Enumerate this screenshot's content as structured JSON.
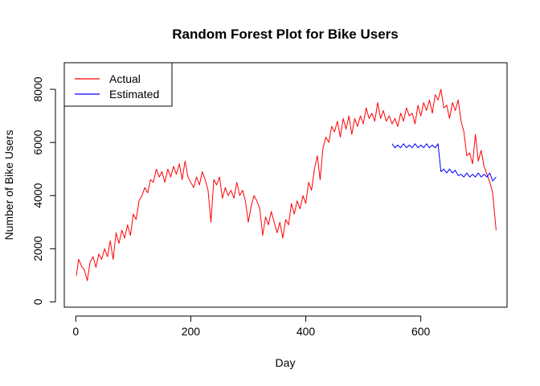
{
  "chart_data": {
    "type": "line",
    "title": "Random Forest Plot for Bike Users",
    "xlabel": "Day",
    "ylabel": "Number of Bike Users",
    "xlim": [
      -20,
      750
    ],
    "ylim": [
      -200,
      9000
    ],
    "xticks": [
      0,
      200,
      400,
      600
    ],
    "yticks": [
      0,
      2000,
      4000,
      6000,
      8000
    ],
    "grid": false,
    "legend": "top-left",
    "series": [
      {
        "name": "Actual",
        "color": "#ff0000",
        "x": [
          1,
          5,
          10,
          15,
          20,
          25,
          30,
          35,
          40,
          45,
          50,
          55,
          60,
          65,
          70,
          75,
          80,
          85,
          90,
          95,
          100,
          105,
          110,
          115,
          120,
          125,
          130,
          135,
          140,
          145,
          150,
          155,
          160,
          165,
          170,
          175,
          180,
          185,
          190,
          195,
          200,
          205,
          210,
          215,
          220,
          225,
          230,
          235,
          240,
          245,
          250,
          255,
          260,
          265,
          270,
          275,
          280,
          285,
          290,
          295,
          300,
          305,
          310,
          315,
          320,
          325,
          330,
          335,
          340,
          345,
          350,
          355,
          360,
          365,
          370,
          375,
          380,
          385,
          390,
          395,
          400,
          405,
          410,
          415,
          420,
          425,
          430,
          435,
          440,
          445,
          450,
          455,
          460,
          465,
          470,
          475,
          480,
          485,
          490,
          495,
          500,
          505,
          510,
          515,
          520,
          525,
          530,
          535,
          540,
          545,
          550,
          555,
          560,
          565,
          570,
          575,
          580,
          585,
          590,
          595,
          600,
          605,
          610,
          615,
          620,
          625,
          630,
          635,
          640,
          645,
          650,
          655,
          660,
          665,
          670,
          675,
          680,
          685,
          690,
          695,
          700,
          705,
          710,
          715,
          720,
          725,
          731
        ],
        "values": [
          985,
          1600,
          1350,
          1200,
          800,
          1500,
          1700,
          1300,
          1800,
          1600,
          2000,
          1700,
          2300,
          1600,
          2600,
          2200,
          2700,
          2400,
          2900,
          2500,
          3300,
          3100,
          3800,
          4000,
          4300,
          4100,
          4600,
          4500,
          5000,
          4700,
          4900,
          4500,
          5000,
          4700,
          5100,
          4800,
          5200,
          4600,
          5300,
          4700,
          4500,
          4300,
          4700,
          4400,
          4900,
          4600,
          4200,
          3000,
          4600,
          4400,
          4700,
          3900,
          4300,
          4000,
          4200,
          3900,
          4500,
          4000,
          4200,
          3800,
          3000,
          3600,
          4000,
          3800,
          3500,
          2500,
          3200,
          2900,
          3400,
          3000,
          2600,
          3000,
          2400,
          3100,
          2900,
          3700,
          3300,
          3800,
          3500,
          4000,
          3700,
          4500,
          4200,
          5000,
          5500,
          4600,
          5800,
          6200,
          6000,
          6600,
          6400,
          6800,
          6200,
          6900,
          6500,
          7000,
          6300,
          6900,
          6600,
          7000,
          6700,
          7300,
          6900,
          7100,
          6800,
          7500,
          6900,
          7200,
          6800,
          7000,
          6700,
          6900,
          6600,
          7100,
          6800,
          7300,
          7000,
          7100,
          6700,
          7400,
          7000,
          7500,
          7200,
          7600,
          7100,
          7800,
          7600,
          8000,
          7300,
          7400,
          6900,
          7500,
          7200,
          7600,
          6800,
          6400,
          5500,
          5600,
          5200,
          6300,
          5300,
          5700,
          5100,
          4800,
          4500,
          4100,
          2700
        ]
      },
      {
        "name": "Estimated",
        "color": "#0000ff",
        "x": [
          550,
          555,
          560,
          565,
          570,
          575,
          580,
          585,
          590,
          595,
          600,
          605,
          610,
          615,
          620,
          625,
          630,
          635,
          640,
          645,
          650,
          655,
          660,
          665,
          670,
          675,
          680,
          685,
          690,
          695,
          700,
          705,
          710,
          715,
          720,
          725,
          731
        ],
        "values": [
          5950,
          5800,
          5900,
          5800,
          5950,
          5800,
          5900,
          5800,
          5950,
          5800,
          5900,
          5800,
          5950,
          5800,
          5900,
          5800,
          5950,
          4900,
          5000,
          4850,
          5000,
          4850,
          4950,
          4750,
          4800,
          4700,
          4850,
          4700,
          4800,
          4700,
          4850,
          4700,
          4800,
          4700,
          4850,
          4550,
          4700
        ]
      }
    ]
  }
}
